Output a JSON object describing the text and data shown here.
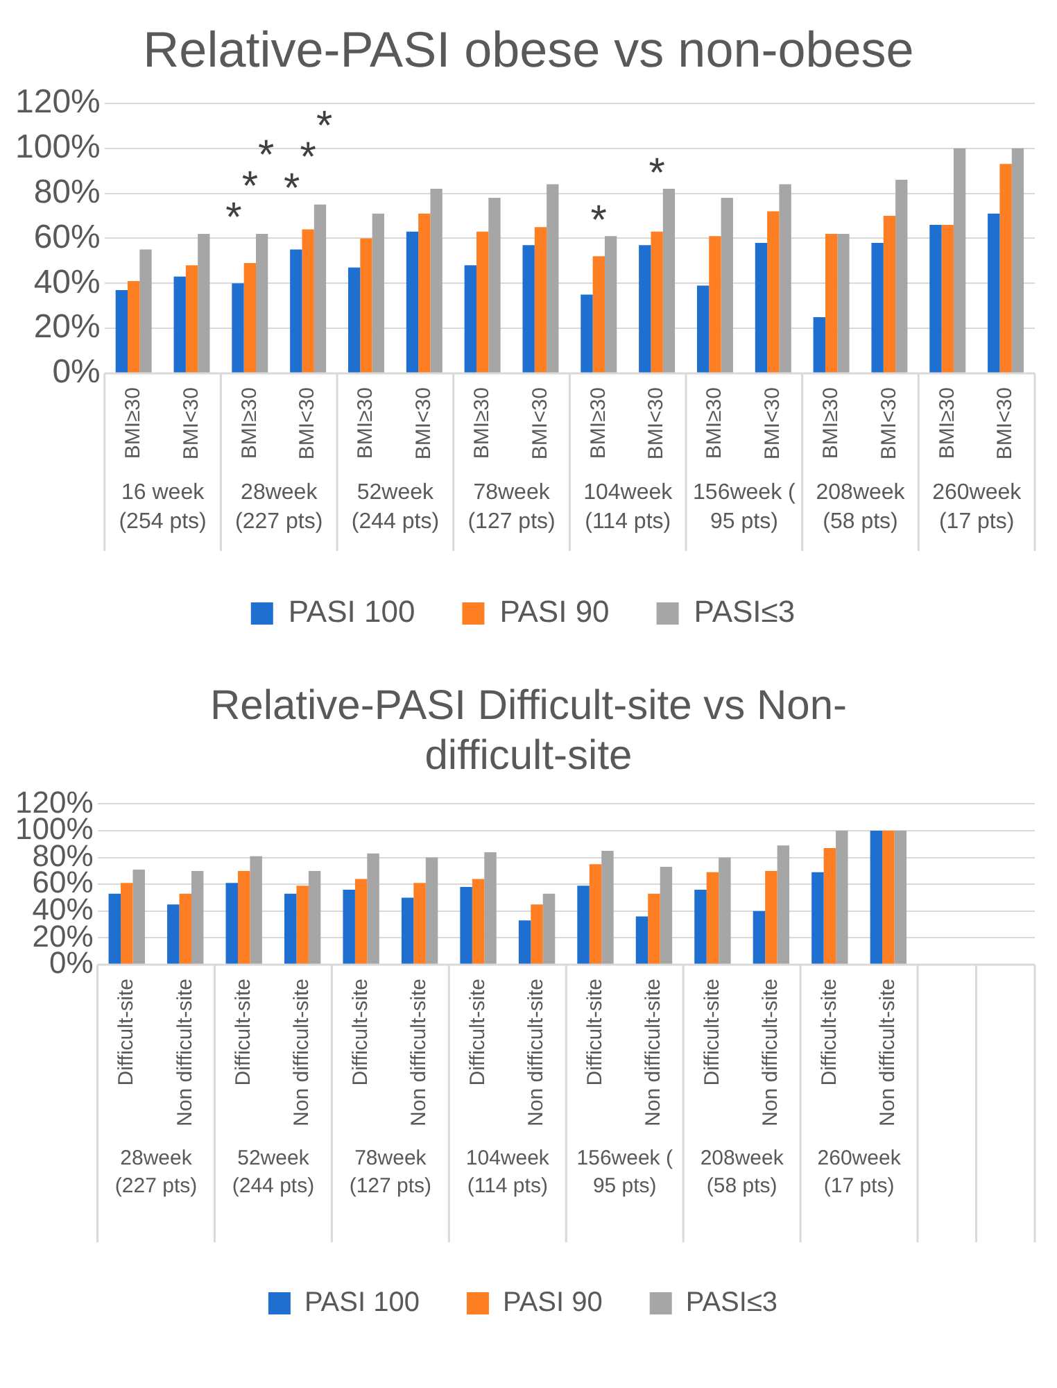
{
  "chart_data": [
    {
      "type": "bar",
      "title": "Relative-PASI obese vs non-obese",
      "categories": [
        "BMI≥30",
        "BMI<30",
        "BMI≥30",
        "BMI<30",
        "BMI≥30",
        "BMI<30",
        "BMI≥30",
        "BMI<30",
        "BMI≥30",
        "BMI<30",
        "BMI≥30",
        "BMI<30",
        "BMI≥30",
        "BMI<30",
        "BMI≥30",
        "BMI<30"
      ],
      "series": [
        {
          "name": "PASI 100",
          "color": "#1f6fd1",
          "values": [
            37,
            43,
            40,
            55,
            47,
            63,
            48,
            57,
            35,
            57,
            39,
            58,
            25,
            58,
            66,
            71
          ]
        },
        {
          "name": "PASI 90",
          "color": "#fd7e23",
          "values": [
            41,
            48,
            49,
            64,
            60,
            71,
            63,
            65,
            52,
            63,
            61,
            72,
            62,
            70,
            66,
            93
          ]
        },
        {
          "name": "PASI≤3",
          "color": "#a6a6a6",
          "values": [
            55,
            62,
            62,
            75,
            71,
            82,
            78,
            84,
            61,
            82,
            78,
            84,
            62,
            86,
            100,
            100
          ]
        }
      ],
      "ylim": [
        0,
        120
      ],
      "yticks": [
        {
          "value": 0,
          "label": "0%"
        },
        {
          "value": 20,
          "label": "20%"
        },
        {
          "value": 40,
          "label": "40%"
        },
        {
          "value": 60,
          "label": "60%"
        },
        {
          "value": 80,
          "label": "80%"
        },
        {
          "value": 100,
          "label": "100%"
        },
        {
          "value": 120,
          "label": "120%"
        }
      ],
      "grid": "y",
      "legend": "bottom",
      "annotations": [
        "16 week (254 pts)",
        "28week (227 pts)",
        "*",
        "*",
        "*",
        "*",
        "*",
        "*",
        "52week (244 pts)",
        "78week (127 pts)",
        "104week (114 pts)",
        "*",
        "*",
        "156week ( 95 pts)",
        "208week (58 pts)",
        "260week (17 pts)"
      ]
    },
    {
      "type": "bar",
      "title": "Relative-PASI Difficult-site vs Non-difficult-site",
      "categories": [
        "Difficult-site",
        "Non difficult-site",
        "Difficult-site",
        "Non difficult-site",
        "Difficult-site",
        "Non difficult-site",
        "Difficult-site",
        "Non difficult-site",
        "Difficult-site",
        "Non difficult-site",
        "Difficult-site",
        "Non difficult-site",
        "Difficult-site",
        "Non difficult-site",
        null,
        null
      ],
      "series": [
        {
          "name": "PASI 100",
          "color": "#1f6fd1",
          "values": [
            53,
            45,
            61,
            53,
            56,
            50,
            58,
            33,
            59,
            36,
            56,
            40,
            69,
            100,
            null,
            null
          ]
        },
        {
          "name": "PASI 90",
          "color": "#fd7e23",
          "values": [
            61,
            53,
            70,
            59,
            64,
            61,
            64,
            45,
            75,
            53,
            69,
            70,
            87,
            100,
            null,
            null
          ]
        },
        {
          "name": "PASI≤3",
          "color": "#a6a6a6",
          "values": [
            71,
            70,
            81,
            70,
            83,
            80,
            84,
            53,
            85,
            73,
            80,
            89,
            100,
            100,
            null,
            null
          ]
        }
      ],
      "ylim": [
        0,
        120
      ],
      "yticks": [
        {
          "value": 0,
          "label": "0%"
        },
        {
          "value": 20,
          "label": "20%"
        },
        {
          "value": 40,
          "label": "40%"
        },
        {
          "value": 60,
          "label": "60%"
        },
        {
          "value": 80,
          "label": "80%"
        },
        {
          "value": 100,
          "label": "100%"
        },
        {
          "value": 120,
          "label": "120%"
        }
      ],
      "grid": "y",
      "legend": "bottom",
      "annotations": [
        "28week (227 pts)",
        "52week (244 pts)",
        "78week (127 pts)",
        "104week (114 pts)",
        "156week ( 95 pts)",
        "208week (58 pts)",
        "260week (17 pts)"
      ]
    }
  ]
}
